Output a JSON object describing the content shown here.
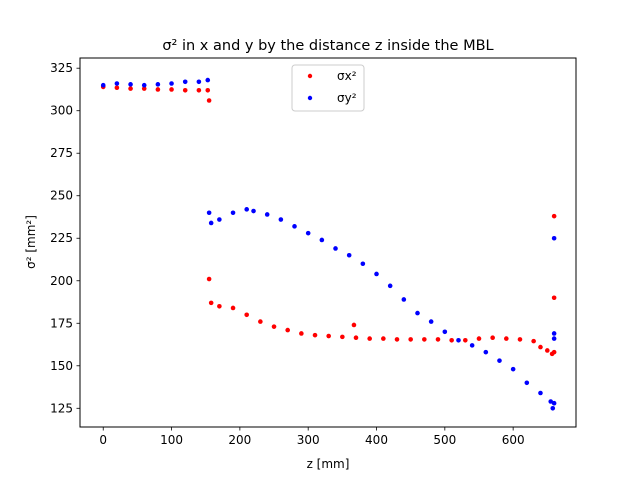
{
  "chart_data": {
    "type": "scatter",
    "title": "σ² in x and y by the distance z inside the MBL",
    "xlabel": "z [mm]",
    "ylabel": "σ² [mm²]",
    "xlim": [
      -34,
      692
    ],
    "ylim": [
      114,
      331
    ],
    "xticks": [
      0,
      100,
      200,
      300,
      400,
      500,
      600
    ],
    "yticks": [
      125,
      150,
      175,
      200,
      225,
      250,
      275,
      300,
      325
    ],
    "legend": "top-center",
    "grid": false,
    "series": [
      {
        "name": "σx²",
        "color": "#ff0000",
        "points": [
          [
            0,
            314
          ],
          [
            20,
            313.5
          ],
          [
            40,
            313
          ],
          [
            60,
            313
          ],
          [
            80,
            312.5
          ],
          [
            100,
            312.5
          ],
          [
            120,
            312
          ],
          [
            140,
            312
          ],
          [
            153,
            312
          ],
          [
            155,
            306
          ],
          [
            155,
            201
          ],
          [
            158,
            187
          ],
          [
            170,
            185
          ],
          [
            190,
            184
          ],
          [
            210,
            180
          ],
          [
            230,
            176
          ],
          [
            250,
            173
          ],
          [
            270,
            171
          ],
          [
            290,
            169
          ],
          [
            310,
            168
          ],
          [
            330,
            167.5
          ],
          [
            350,
            167
          ],
          [
            367,
            174
          ],
          [
            370,
            166.5
          ],
          [
            390,
            166
          ],
          [
            410,
            166
          ],
          [
            430,
            165.5
          ],
          [
            450,
            165.5
          ],
          [
            470,
            165.5
          ],
          [
            490,
            165.5
          ],
          [
            510,
            165
          ],
          [
            530,
            165
          ],
          [
            550,
            166
          ],
          [
            570,
            166.5
          ],
          [
            590,
            166
          ],
          [
            610,
            165.5
          ],
          [
            630,
            164.5
          ],
          [
            640,
            161
          ],
          [
            650,
            159
          ],
          [
            657,
            157
          ],
          [
            660,
            158
          ],
          [
            660,
            190
          ],
          [
            660,
            238
          ]
        ]
      },
      {
        "name": "σy²",
        "color": "#0000ff",
        "points": [
          [
            0,
            315
          ],
          [
            20,
            316
          ],
          [
            40,
            315.5
          ],
          [
            60,
            315
          ],
          [
            80,
            315.5
          ],
          [
            100,
            316
          ],
          [
            120,
            317
          ],
          [
            140,
            317
          ],
          [
            153,
            318
          ],
          [
            155,
            240
          ],
          [
            158,
            234
          ],
          [
            170,
            236
          ],
          [
            190,
            240
          ],
          [
            210,
            242
          ],
          [
            220,
            241
          ],
          [
            240,
            239
          ],
          [
            260,
            236
          ],
          [
            280,
            232
          ],
          [
            300,
            228
          ],
          [
            320,
            224
          ],
          [
            340,
            219
          ],
          [
            360,
            215
          ],
          [
            380,
            210
          ],
          [
            400,
            204
          ],
          [
            420,
            197
          ],
          [
            440,
            189
          ],
          [
            460,
            181
          ],
          [
            480,
            176
          ],
          [
            500,
            170
          ],
          [
            520,
            165
          ],
          [
            540,
            162
          ],
          [
            560,
            158
          ],
          [
            580,
            153
          ],
          [
            600,
            148
          ],
          [
            620,
            140
          ],
          [
            640,
            134
          ],
          [
            655,
            129
          ],
          [
            658,
            125
          ],
          [
            660,
            128
          ],
          [
            660,
            166
          ],
          [
            660,
            169
          ],
          [
            660,
            225
          ]
        ]
      }
    ]
  }
}
